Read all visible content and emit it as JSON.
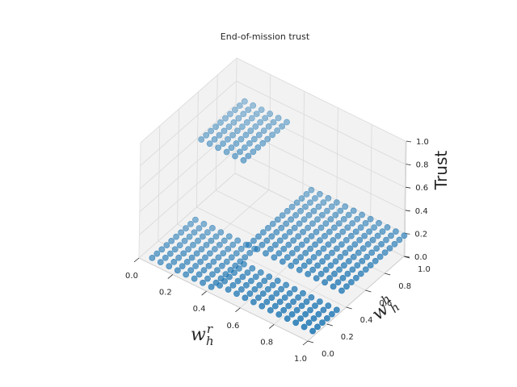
{
  "chart_data": {
    "type": "scatter",
    "projection": "3d",
    "title": "End-of-mission trust",
    "xlabel": "w_h^r",
    "ylabel": "w_h^h",
    "zlabel": "Trust",
    "xlim": [
      0,
      1
    ],
    "ylim": [
      0,
      1
    ],
    "zlim": [
      0,
      1
    ],
    "x_ticks": [
      "0.0",
      "0.2",
      "0.4",
      "0.6",
      "0.8",
      "1.0"
    ],
    "y_ticks": [
      "0.0",
      "0.2",
      "0.4",
      "0.6",
      "0.8",
      "1.0"
    ],
    "z_ticks": [
      "0.0",
      "0.2",
      "0.4",
      "0.6",
      "0.8",
      "1.0"
    ],
    "grid": true,
    "marker_color": "#1f77b4",
    "pane_color": "#f2f2f2",
    "grid_steps": [
      0.05,
      0.1,
      0.15,
      0.2,
      0.25,
      0.3,
      0.35,
      0.4,
      0.45,
      0.5,
      0.55,
      0.6,
      0.65,
      0.7,
      0.75,
      0.8,
      0.85,
      0.9,
      0.95,
      1.0
    ],
    "regions": [
      {
        "name": "",
        "w_h_r_range": [
          0.05,
          0.4
        ],
        "w_h_h_range": [
          0.05,
          0.5
        ],
        "trust": 0.0
      },
      {
        "name": "",
        "w_h_r_range": [
          0.05,
          0.3
        ],
        "w_h_h_range": [
          0.55,
          1.0
        ],
        "trust": 0.66
      },
      {
        "name": "",
        "w_h_r_range": [
          0.45,
          1.0
        ],
        "w_h_h_range": [
          0.05,
          0.3
        ],
        "trust": 0.05
      },
      {
        "name": "",
        "w_h_r_range": [
          0.45,
          1.0
        ],
        "w_h_h_range": [
          0.35,
          1.0
        ],
        "trust": 0.18
      }
    ]
  }
}
